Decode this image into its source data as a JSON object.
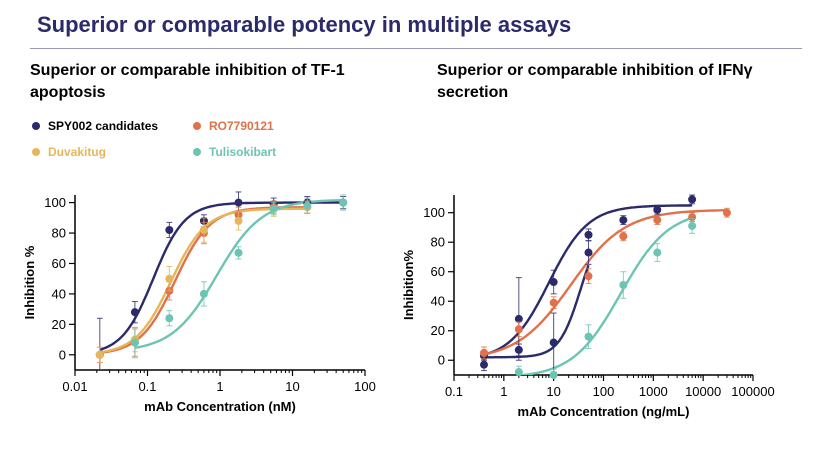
{
  "title": "Superior or comparable potency in multiple assays",
  "colors": {
    "SPY002 candidates": "#2b2a6b",
    "RO7790121": "#e07148",
    "Duvakitug": "#e6b65a",
    "Tulisokibart": "#6cc5b3"
  },
  "chart_data": [
    {
      "type": "scatter",
      "title": "Superior or comparable inhibition of TF-1 apoptosis",
      "xlabel": "mAb Concentration (nM)",
      "ylabel": "Inhibition %",
      "xscale": "log",
      "xlim": [
        0.01,
        100
      ],
      "ylim": [
        -10,
        105
      ],
      "xticks": [
        0.01,
        0.1,
        1,
        10,
        100
      ],
      "xtick_labels": [
        "0.01",
        "0.1",
        "1",
        "10",
        "100"
      ],
      "yticks": [
        0,
        20,
        40,
        60,
        80,
        100
      ],
      "ytick_labels": [
        "0",
        "20",
        "40",
        "60",
        "80",
        "100"
      ],
      "legend": [
        "SPY002 candidates",
        "RO7790121",
        "Duvakitug",
        "Tulisokibart"
      ],
      "series": [
        {
          "name": "SPY002 candidates",
          "x": [
            0.022,
            0.067,
            0.2,
            0.6,
            1.8,
            5.5,
            16,
            50
          ],
          "y": [
            0,
            28,
            82,
            88,
            100,
            99,
            100,
            100
          ],
          "err": [
            24,
            7,
            5,
            4,
            7,
            4,
            4,
            4
          ],
          "fit": {
            "bottom": 0,
            "top": 100,
            "ec50": 0.12,
            "hill": 2.0
          }
        },
        {
          "name": "RO7790121",
          "x": [
            0.022,
            0.067,
            0.2,
            0.6,
            1.8,
            5.5,
            16
          ],
          "y": [
            0,
            8,
            42,
            80,
            92,
            97,
            97
          ],
          "err": [
            5,
            9,
            6,
            7,
            5,
            4,
            4
          ],
          "fit": {
            "bottom": 0,
            "top": 97,
            "ec50": 0.24,
            "hill": 1.8
          }
        },
        {
          "name": "Duvakitug",
          "x": [
            0.022,
            0.067,
            0.2,
            0.6,
            1.8,
            5.5,
            16
          ],
          "y": [
            0,
            10,
            50,
            82,
            88,
            96,
            97
          ],
          "err": [
            5,
            8,
            8,
            8,
            6,
            5,
            4
          ],
          "fit": {
            "bottom": 0,
            "top": 96,
            "ec50": 0.21,
            "hill": 1.8
          }
        },
        {
          "name": "Tulisokibart",
          "x": [
            0.067,
            0.2,
            0.6,
            1.8,
            5.5,
            16,
            50
          ],
          "y": [
            8,
            24,
            40,
            67,
            96,
            98,
            100
          ],
          "err": [
            10,
            5,
            8,
            4,
            4,
            5,
            5
          ],
          "fit": {
            "bottom": 2,
            "top": 102,
            "ec50": 0.9,
            "hill": 1.4
          }
        }
      ]
    },
    {
      "type": "scatter",
      "title": "Superior or comparable inhibition of IFNγ secretion",
      "xlabel": "mAb Concentration (ng/mL)",
      "ylabel": "Inhibition%",
      "xscale": "log",
      "xlim": [
        0.1,
        100000
      ],
      "ylim": [
        -10,
        112
      ],
      "xticks": [
        0.1,
        1,
        10,
        100,
        1000,
        10000,
        100000
      ],
      "xtick_labels": [
        "0.1",
        "1",
        "10",
        "100",
        "1000",
        "10000",
        "100000"
      ],
      "yticks": [
        0,
        20,
        40,
        60,
        80,
        100
      ],
      "ytick_labels": [
        "0",
        "20",
        "40",
        "60",
        "80",
        "100"
      ],
      "series": [
        {
          "name": "SPY002 candidates A",
          "x": [
            0.4,
            2,
            10,
            50,
            250,
            1200,
            6000
          ],
          "y": [
            -3,
            28,
            53,
            85,
            95,
            102,
            109
          ],
          "err": [
            4,
            28,
            8,
            4,
            3,
            3,
            3
          ],
          "fit": {
            "bottom": 0,
            "top": 105,
            "ec50": 8,
            "hill": 1.1
          }
        },
        {
          "name": "SPY002 candidates B",
          "x": [
            0.4,
            2,
            10,
            50
          ],
          "y": [
            3,
            7,
            12,
            73
          ],
          "err": [
            3,
            4,
            20,
            8
          ],
          "fit": {
            "bottom": 2,
            "top": 95,
            "ec50": 35,
            "hill": 2.0
          }
        },
        {
          "name": "RO7790121",
          "x": [
            0.4,
            2,
            10,
            50,
            250,
            1200,
            6000,
            30000
          ],
          "y": [
            5,
            21,
            39,
            57,
            84,
            95,
            97,
            100
          ],
          "err": [
            4,
            5,
            4,
            5,
            3,
            3,
            3,
            3
          ],
          "fit": {
            "bottom": 0,
            "top": 102,
            "ec50": 22,
            "hill": 0.8
          }
        },
        {
          "name": "Tulisokibart",
          "x": [
            2,
            10,
            50,
            250,
            1200,
            6000
          ],
          "y": [
            -8,
            -10,
            16,
            51,
            73,
            91
          ],
          "err": [
            4,
            4,
            8,
            9,
            6,
            5
          ],
          "fit": {
            "bottom": -12,
            "top": 102,
            "ec50": 220,
            "hill": 0.9
          }
        }
      ]
    }
  ]
}
